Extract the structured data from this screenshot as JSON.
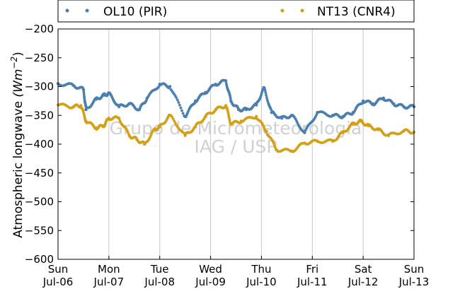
{
  "chart_data": {
    "type": "scatter",
    "title": "",
    "ylabel": "Atmospheric longwave",
    "ylabel_unit": "(Wm",
    "ylabel_unit_exp": "−2",
    "ylabel_unit_close": ")",
    "ylim": [
      -600,
      -200
    ],
    "yticks": [
      -600,
      -550,
      -500,
      -450,
      -400,
      -350,
      -300,
      -250,
      -200
    ],
    "ytick_labels": [
      "−600",
      "−550",
      "−500",
      "−450",
      "−400",
      "−350",
      "−300",
      "−250",
      "−200"
    ],
    "xlim": [
      0,
      7
    ],
    "xticks": [
      {
        "day": "Sun",
        "date": "Jul-06"
      },
      {
        "day": "Mon",
        "date": "Jul-07"
      },
      {
        "day": "Tue",
        "date": "Jul-08"
      },
      {
        "day": "Wed",
        "date": "Jul-09"
      },
      {
        "day": "Thu",
        "date": "Jul-10"
      },
      {
        "day": "Fri",
        "date": "Jul-11"
      },
      {
        "day": "Sat",
        "date": "Jul-12"
      },
      {
        "day": "Sun",
        "date": "Jul-13"
      }
    ],
    "grid": "vertical",
    "legend_position": "top",
    "watermark": [
      "Grupo de Micrometeorologia",
      "IAG / USP"
    ],
    "series": [
      {
        "name": "OL10 (PIR)",
        "color": "#4a7fb0",
        "x": [
          0,
          0.3,
          0.5,
          0.55,
          0.75,
          0.9,
          1.0,
          1.2,
          1.4,
          1.6,
          1.75,
          2.0,
          2.2,
          2.5,
          2.7,
          2.9,
          3.1,
          3.3,
          3.4,
          3.55,
          3.7,
          3.9,
          4.05,
          4.2,
          4.4,
          4.6,
          4.85,
          5.1,
          5.4,
          5.6,
          5.8,
          6.0,
          6.2,
          6.4,
          6.6,
          6.8,
          7.0
        ],
        "y": [
          -295,
          -298,
          -305,
          -340,
          -322,
          -315,
          -312,
          -335,
          -330,
          -340,
          -320,
          -296,
          -300,
          -352,
          -325,
          -310,
          -296,
          -290,
          -325,
          -340,
          -340,
          -332,
          -302,
          -345,
          -355,
          -350,
          -380,
          -345,
          -350,
          -352,
          -345,
          -325,
          -330,
          -320,
          -330,
          -335,
          -335
        ]
      },
      {
        "name": "NT13 (CNR4)",
        "color": "#d4a018",
        "x": [
          0,
          0.3,
          0.45,
          0.55,
          0.75,
          0.9,
          1.0,
          1.2,
          1.4,
          1.55,
          1.7,
          1.9,
          2.0,
          2.2,
          2.5,
          2.7,
          2.9,
          3.1,
          3.3,
          3.4,
          3.6,
          3.9,
          4.1,
          4.3,
          4.6,
          4.85,
          5.1,
          5.4,
          5.6,
          5.8,
          5.95,
          6.1,
          6.3,
          6.5,
          6.8,
          7.0
        ],
        "y": [
          -332,
          -335,
          -333,
          -360,
          -372,
          -368,
          -355,
          -355,
          -385,
          -392,
          -400,
          -375,
          -370,
          -350,
          -385,
          -370,
          -352,
          -340,
          -333,
          -365,
          -360,
          -352,
          -378,
          -410,
          -412,
          -398,
          -395,
          -395,
          -380,
          -365,
          -360,
          -368,
          -375,
          -385,
          -377,
          -379
        ]
      }
    ]
  }
}
